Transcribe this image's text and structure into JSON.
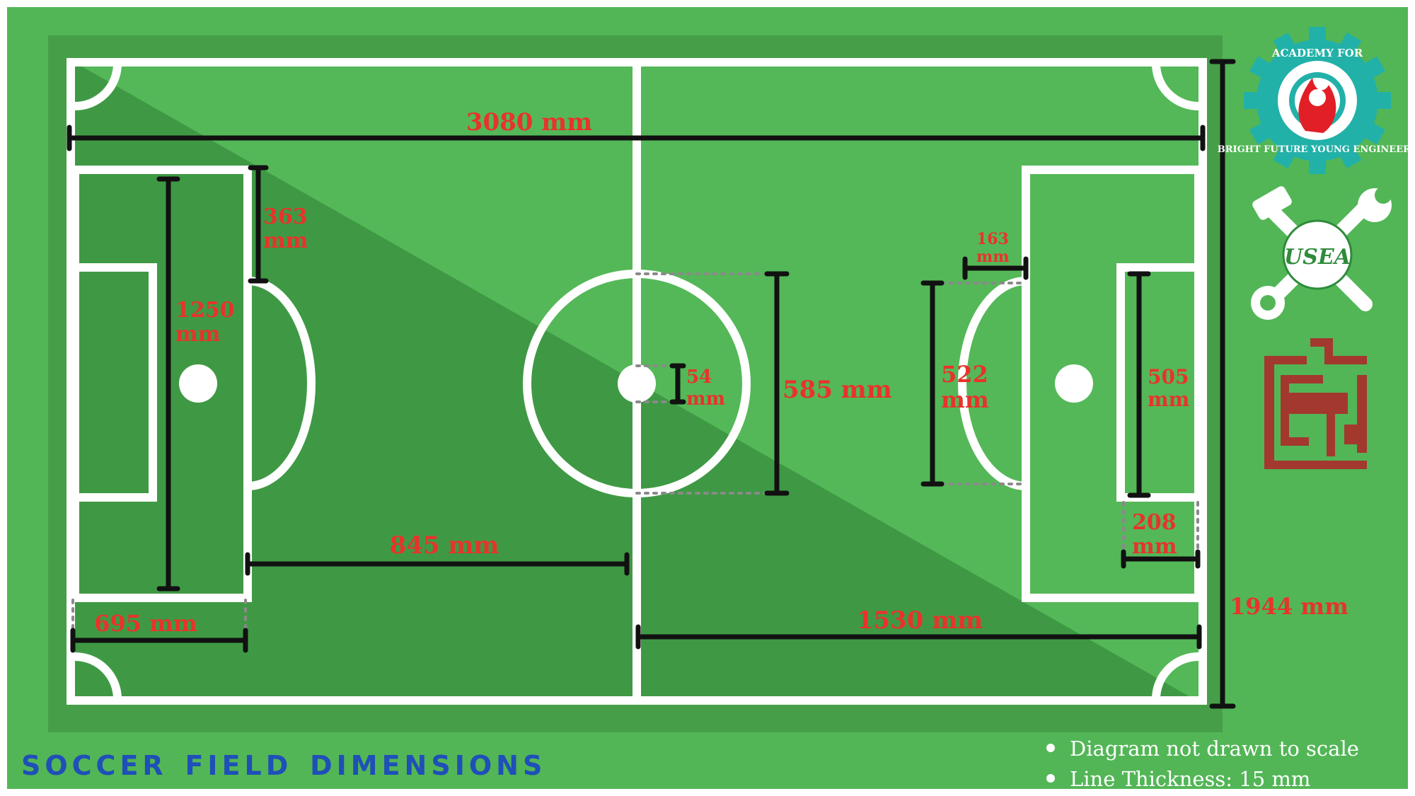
{
  "title": "soccer field dimensions",
  "notes": [
    "Diagram not drawn to scale",
    "Line Thickness: 15 mm"
  ],
  "dimensions": {
    "field_length": "3080 mm",
    "field_width": "1944 mm",
    "penalty_depth_left": "695 mm",
    "penalty_to_center": "845 mm",
    "center_to_edge": "1530 mm",
    "penalty_width_num": "1250",
    "penalty_width_unit": "mm",
    "arc_offset_num": "363",
    "arc_offset_unit": "mm",
    "center_circle": "585 mm",
    "center_spot_num": "54",
    "center_spot_unit": "mm",
    "arc_chord_num": "522",
    "arc_chord_unit": "mm",
    "arc_depth_num": "163",
    "arc_depth_unit": "mm",
    "goal_area_width_num": "505",
    "goal_area_width_unit": "mm",
    "goal_area_depth_num": "208",
    "goal_area_depth_unit": "mm"
  },
  "logos": {
    "academy": "Academy for Bright Future Young Engineers",
    "usea": "USEA"
  },
  "colors": {
    "outer_bg": "#52b656",
    "field_dark": "#3e9a44",
    "field_light": "#55b959",
    "line": "#ffffff",
    "dim_text": "#e8332b",
    "title": "#1f4fb8",
    "badge_teal": "#22b1a8",
    "brick": "#a3382f"
  }
}
